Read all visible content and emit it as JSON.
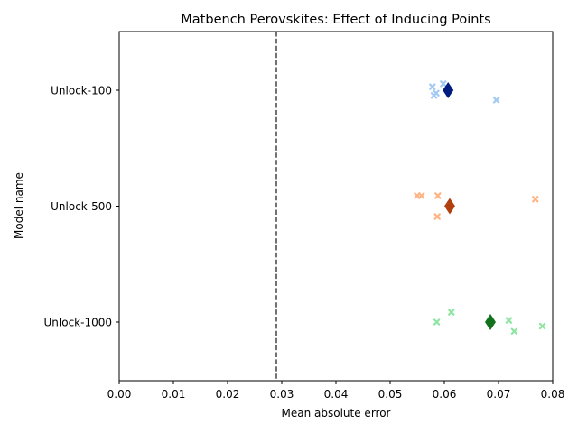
{
  "chart_data": {
    "type": "scatter",
    "title": "Matbench Perovskites: Effect of Inducing Points",
    "xlabel": "Mean absolute error",
    "ylabel": "Model name",
    "xlim": [
      0.0,
      0.08
    ],
    "xticks": [
      "0.00",
      "0.01",
      "0.02",
      "0.03",
      "0.04",
      "0.05",
      "0.06",
      "0.07",
      "0.08"
    ],
    "grid": false,
    "reference_line": {
      "x": 0.029,
      "style": "dashed",
      "color": "#444444"
    },
    "categories": [
      "Unlock-100",
      "Unlock-500",
      "Unlock-1000"
    ],
    "series": [
      {
        "category": "Unlock-100",
        "point_color": "#a1c9f4",
        "mean_color": "#001c7f",
        "points": [
          {
            "x": 0.0578,
            "jitter": -0.03
          },
          {
            "x": 0.0598,
            "jitter": -0.055
          },
          {
            "x": 0.0585,
            "jitter": 0.025
          },
          {
            "x": 0.0581,
            "jitter": 0.045
          },
          {
            "x": 0.0696,
            "jitter": 0.085
          }
        ],
        "mean": 0.0607
      },
      {
        "category": "Unlock-500",
        "point_color": "#ffb482",
        "mean_color": "#b1400d",
        "points": [
          {
            "x": 0.055,
            "jitter": -0.09
          },
          {
            "x": 0.0558,
            "jitter": -0.09
          },
          {
            "x": 0.0588,
            "jitter": -0.09
          },
          {
            "x": 0.0768,
            "jitter": -0.06
          },
          {
            "x": 0.0587,
            "jitter": 0.09
          }
        ],
        "mean": 0.061
      },
      {
        "category": "Unlock-1000",
        "point_color": "#8de5a1",
        "mean_color": "#12711c",
        "points": [
          {
            "x": 0.0613,
            "jitter": -0.085
          },
          {
            "x": 0.0586,
            "jitter": 0.0
          },
          {
            "x": 0.0719,
            "jitter": -0.015
          },
          {
            "x": 0.0781,
            "jitter": 0.035
          },
          {
            "x": 0.0729,
            "jitter": 0.08
          }
        ],
        "mean": 0.0685
      }
    ]
  }
}
